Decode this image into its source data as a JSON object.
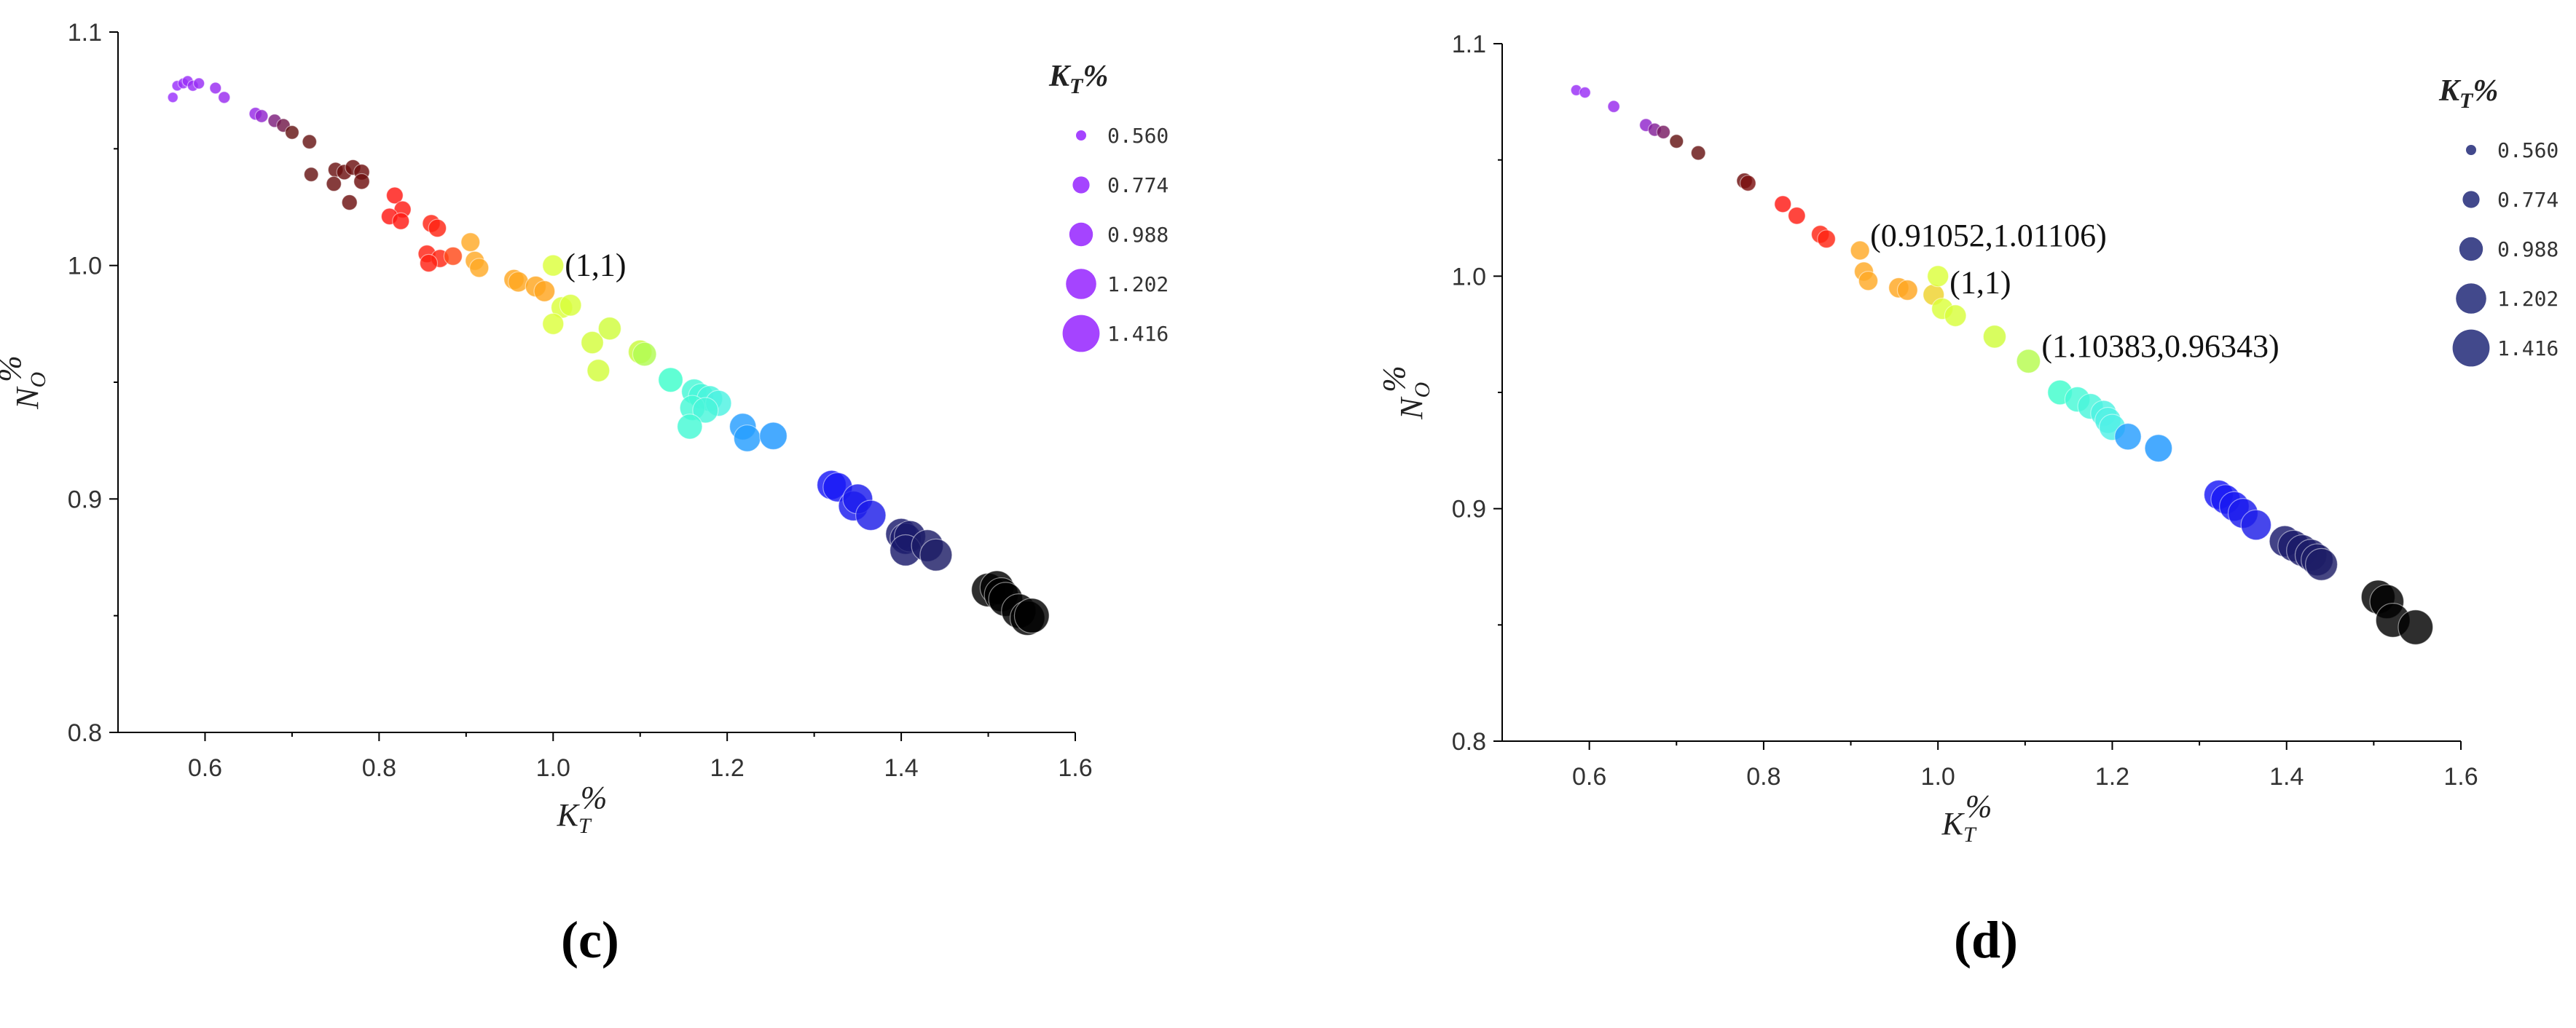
{
  "chart_data": [
    {
      "panel_label": "(c)",
      "type": "scatter",
      "xlabel_main": "K",
      "xlabel_sub": "T",
      "xlabel_suffix": "%",
      "ylabel_main": "N",
      "ylabel_sub": "O",
      "ylabel_suffix": "%",
      "xlim": [
        0.5,
        1.6
      ],
      "ylim": [
        0.8,
        1.1
      ],
      "xticks": [
        "0.6",
        "0.8",
        "1.0",
        "1.2",
        "1.4",
        "1.6"
      ],
      "yticks": [
        "0.8",
        "0.9",
        "1.0",
        "1.1"
      ],
      "legend": {
        "title_main": "K",
        "title_sub": "T",
        "title_suffix": "%",
        "color": "#9b30ff",
        "placement": "top-right",
        "entries": [
          "0.560",
          "0.774",
          "0.988",
          "1.202",
          "1.416"
        ]
      },
      "annotations": [
        {
          "text": "(1,1)",
          "x": 1.0,
          "y": 1.0
        }
      ],
      "points": [
        {
          "x": 0.563,
          "y": 1.072
        },
        {
          "x": 0.568,
          "y": 1.077
        },
        {
          "x": 0.575,
          "y": 1.078
        },
        {
          "x": 0.58,
          "y": 1.079
        },
        {
          "x": 0.586,
          "y": 1.077
        },
        {
          "x": 0.593,
          "y": 1.078
        },
        {
          "x": 0.612,
          "y": 1.076
        },
        {
          "x": 0.622,
          "y": 1.072
        },
        {
          "x": 0.658,
          "y": 1.065
        },
        {
          "x": 0.665,
          "y": 1.064
        },
        {
          "x": 0.68,
          "y": 1.062
        },
        {
          "x": 0.69,
          "y": 1.06
        },
        {
          "x": 0.7,
          "y": 1.057
        },
        {
          "x": 0.72,
          "y": 1.053
        },
        {
          "x": 0.722,
          "y": 1.039
        },
        {
          "x": 0.75,
          "y": 1.041
        },
        {
          "x": 0.76,
          "y": 1.04
        },
        {
          "x": 0.77,
          "y": 1.042
        },
        {
          "x": 0.78,
          "y": 1.04
        },
        {
          "x": 0.748,
          "y": 1.035
        },
        {
          "x": 0.766,
          "y": 1.027
        },
        {
          "x": 0.78,
          "y": 1.036
        },
        {
          "x": 0.818,
          "y": 1.03
        },
        {
          "x": 0.827,
          "y": 1.024
        },
        {
          "x": 0.812,
          "y": 1.021
        },
        {
          "x": 0.825,
          "y": 1.019
        },
        {
          "x": 0.86,
          "y": 1.018
        },
        {
          "x": 0.867,
          "y": 1.016
        },
        {
          "x": 0.905,
          "y": 1.01
        },
        {
          "x": 0.855,
          "y": 1.005
        },
        {
          "x": 0.87,
          "y": 1.003
        },
        {
          "x": 0.885,
          "y": 1.004
        },
        {
          "x": 0.857,
          "y": 1.001
        },
        {
          "x": 0.91,
          "y": 1.002
        },
        {
          "x": 0.915,
          "y": 0.999
        },
        {
          "x": 0.955,
          "y": 0.994
        },
        {
          "x": 0.96,
          "y": 0.993
        },
        {
          "x": 0.98,
          "y": 0.991
        },
        {
          "x": 0.99,
          "y": 0.989
        },
        {
          "x": 1.0,
          "y": 1.0
        },
        {
          "x": 1.01,
          "y": 0.982
        },
        {
          "x": 1.02,
          "y": 0.983
        },
        {
          "x": 1.0,
          "y": 0.975
        },
        {
          "x": 1.045,
          "y": 0.967
        },
        {
          "x": 1.065,
          "y": 0.973
        },
        {
          "x": 1.1,
          "y": 0.963
        },
        {
          "x": 1.105,
          "y": 0.962
        },
        {
          "x": 1.052,
          "y": 0.955
        },
        {
          "x": 1.135,
          "y": 0.951
        },
        {
          "x": 1.162,
          "y": 0.946
        },
        {
          "x": 1.17,
          "y": 0.944
        },
        {
          "x": 1.18,
          "y": 0.943
        },
        {
          "x": 1.19,
          "y": 0.941
        },
        {
          "x": 1.16,
          "y": 0.939
        },
        {
          "x": 1.175,
          "y": 0.938
        },
        {
          "x": 1.157,
          "y": 0.931
        },
        {
          "x": 1.218,
          "y": 0.931
        },
        {
          "x": 1.223,
          "y": 0.926
        },
        {
          "x": 1.253,
          "y": 0.927
        },
        {
          "x": 1.32,
          "y": 0.906
        },
        {
          "x": 1.327,
          "y": 0.905
        },
        {
          "x": 1.345,
          "y": 0.897
        },
        {
          "x": 1.35,
          "y": 0.9
        },
        {
          "x": 1.365,
          "y": 0.893
        },
        {
          "x": 1.4,
          "y": 0.885
        },
        {
          "x": 1.405,
          "y": 0.883
        },
        {
          "x": 1.41,
          "y": 0.884
        },
        {
          "x": 1.405,
          "y": 0.878
        },
        {
          "x": 1.43,
          "y": 0.88
        },
        {
          "x": 1.44,
          "y": 0.876
        },
        {
          "x": 1.5,
          "y": 0.861
        },
        {
          "x": 1.51,
          "y": 0.862
        },
        {
          "x": 1.515,
          "y": 0.859
        },
        {
          "x": 1.52,
          "y": 0.857
        },
        {
          "x": 1.535,
          "y": 0.852
        },
        {
          "x": 1.545,
          "y": 0.849
        },
        {
          "x": 1.55,
          "y": 0.85
        }
      ]
    },
    {
      "panel_label": "(d)",
      "type": "scatter",
      "xlabel_main": "K",
      "xlabel_sub": "T",
      "xlabel_suffix": "%",
      "ylabel_main": "N",
      "ylabel_sub": "O",
      "ylabel_suffix": "%",
      "xlim": [
        0.5,
        1.6
      ],
      "ylim": [
        0.8,
        1.1
      ],
      "xticks": [
        "0.6",
        "0.8",
        "1.0",
        "1.2",
        "1.4",
        "1.6"
      ],
      "yticks": [
        "0.8",
        "0.9",
        "1.0",
        "1.1"
      ],
      "legend": {
        "title_main": "K",
        "title_sub": "T",
        "title_suffix": "%",
        "color": "#2e3580",
        "placement": "top-right",
        "entries": [
          "0.560",
          "0.774",
          "0.988",
          "1.202",
          "1.416"
        ]
      },
      "annotations": [
        {
          "text": "(0.91052,1.01106)",
          "x": 0.91052,
          "y": 1.01106
        },
        {
          "text": "(1,1)",
          "x": 1.0,
          "y": 0.994
        },
        {
          "text": "(1.10383,0.96343)",
          "x": 1.10383,
          "y": 0.96343
        }
      ],
      "points": [
        {
          "x": 0.585,
          "y": 1.08
        },
        {
          "x": 0.595,
          "y": 1.079
        },
        {
          "x": 0.628,
          "y": 1.073
        },
        {
          "x": 0.665,
          "y": 1.065
        },
        {
          "x": 0.675,
          "y": 1.063
        },
        {
          "x": 0.685,
          "y": 1.062
        },
        {
          "x": 0.7,
          "y": 1.058
        },
        {
          "x": 0.725,
          "y": 1.053
        },
        {
          "x": 0.778,
          "y": 1.041
        },
        {
          "x": 0.782,
          "y": 1.04
        },
        {
          "x": 0.822,
          "y": 1.031
        },
        {
          "x": 0.838,
          "y": 1.026
        },
        {
          "x": 0.865,
          "y": 1.018
        },
        {
          "x": 0.872,
          "y": 1.016
        },
        {
          "x": 0.91052,
          "y": 1.01106
        },
        {
          "x": 0.915,
          "y": 1.002
        },
        {
          "x": 0.92,
          "y": 0.998
        },
        {
          "x": 0.955,
          "y": 0.995
        },
        {
          "x": 0.965,
          "y": 0.994
        },
        {
          "x": 0.995,
          "y": 0.992
        },
        {
          "x": 1.0,
          "y": 1.0
        },
        {
          "x": 1.005,
          "y": 0.986
        },
        {
          "x": 1.02,
          "y": 0.983
        },
        {
          "x": 1.065,
          "y": 0.974
        },
        {
          "x": 1.10383,
          "y": 0.96343
        },
        {
          "x": 1.14,
          "y": 0.95
        },
        {
          "x": 1.16,
          "y": 0.947
        },
        {
          "x": 1.175,
          "y": 0.944
        },
        {
          "x": 1.19,
          "y": 0.941
        },
        {
          "x": 1.195,
          "y": 0.938
        },
        {
          "x": 1.2,
          "y": 0.935
        },
        {
          "x": 1.218,
          "y": 0.931
        },
        {
          "x": 1.253,
          "y": 0.926
        },
        {
          "x": 1.322,
          "y": 0.906
        },
        {
          "x": 1.33,
          "y": 0.904
        },
        {
          "x": 1.34,
          "y": 0.901
        },
        {
          "x": 1.35,
          "y": 0.898
        },
        {
          "x": 1.365,
          "y": 0.893
        },
        {
          "x": 1.398,
          "y": 0.886
        },
        {
          "x": 1.408,
          "y": 0.884
        },
        {
          "x": 1.418,
          "y": 0.882
        },
        {
          "x": 1.428,
          "y": 0.88
        },
        {
          "x": 1.435,
          "y": 0.878
        },
        {
          "x": 1.44,
          "y": 0.876
        },
        {
          "x": 1.505,
          "y": 0.862
        },
        {
          "x": 1.515,
          "y": 0.86
        },
        {
          "x": 1.522,
          "y": 0.852
        },
        {
          "x": 1.548,
          "y": 0.849
        }
      ]
    }
  ]
}
